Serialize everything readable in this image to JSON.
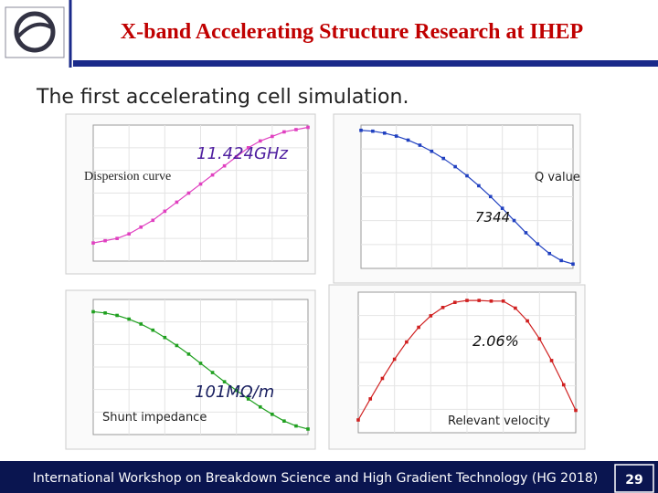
{
  "header": {
    "title": "X-band Accelerating Structure Research at IHEP"
  },
  "subtitle": "The first accelerating cell simulation.",
  "panels": [
    {
      "type": "line",
      "label": "Dispersion curve",
      "annotation": "11.424GHz",
      "color": "#e040c0",
      "x": [
        0,
        10,
        20,
        30,
        40,
        50,
        60,
        70,
        80,
        90,
        100,
        110,
        120,
        130,
        140,
        150,
        160,
        170,
        180
      ],
      "values": [
        11.24,
        11.245,
        11.25,
        11.26,
        11.275,
        11.29,
        11.31,
        11.33,
        11.35,
        11.37,
        11.39,
        11.41,
        11.43,
        11.45,
        11.465,
        11.475,
        11.485,
        11.49,
        11.495
      ],
      "xlim": [
        0,
        180
      ],
      "ylim": [
        11.2,
        11.5
      ]
    },
    {
      "type": "line",
      "label": "Q value",
      "annotation": "7344",
      "color": "#2040c0",
      "x": [
        0,
        10,
        20,
        30,
        40,
        50,
        60,
        70,
        80,
        90,
        100,
        110,
        120,
        130,
        140,
        150,
        160,
        170,
        180
      ],
      "values": [
        7790,
        7785,
        7774,
        7757,
        7734,
        7705,
        7670,
        7629,
        7582,
        7530,
        7473,
        7411,
        7344,
        7274,
        7204,
        7140,
        7085,
        7045,
        7025
      ],
      "xlim": [
        0,
        180
      ],
      "ylim": [
        7000,
        7820
      ]
    },
    {
      "type": "line",
      "label": "Shunt impedance",
      "annotation": "101MΩ/m",
      "color": "#20a020",
      "x": [
        0,
        10,
        20,
        30,
        40,
        50,
        60,
        70,
        80,
        90,
        100,
        110,
        120,
        130,
        140,
        150,
        160,
        170,
        180
      ],
      "values": [
        200,
        198,
        194,
        188,
        180,
        170,
        158,
        145,
        131,
        116,
        101,
        86,
        72,
        58,
        45,
        33,
        22,
        14,
        9
      ],
      "xlim": [
        0,
        180
      ],
      "ylim": [
        0,
        220
      ]
    },
    {
      "type": "line",
      "label": "Relevant velocity",
      "annotation": "2.06%",
      "color": "#d02020",
      "x": [
        0,
        10,
        20,
        30,
        40,
        50,
        60,
        70,
        80,
        90,
        100,
        110,
        120,
        130,
        140,
        150,
        160,
        170,
        180
      ],
      "values": [
        0.002,
        0.0053,
        0.0085,
        0.0115,
        0.0142,
        0.0165,
        0.0183,
        0.0196,
        0.0204,
        0.0207,
        0.0207,
        0.0206,
        0.0206,
        0.0195,
        0.0175,
        0.0147,
        0.0113,
        0.0075,
        0.0035
      ],
      "xlim": [
        0,
        180
      ],
      "ylim": [
        0,
        0.022
      ]
    }
  ],
  "footer": {
    "text": "International Workshop on Breakdown Science and High Gradient Technology (HG 2018)",
    "page": "29"
  }
}
